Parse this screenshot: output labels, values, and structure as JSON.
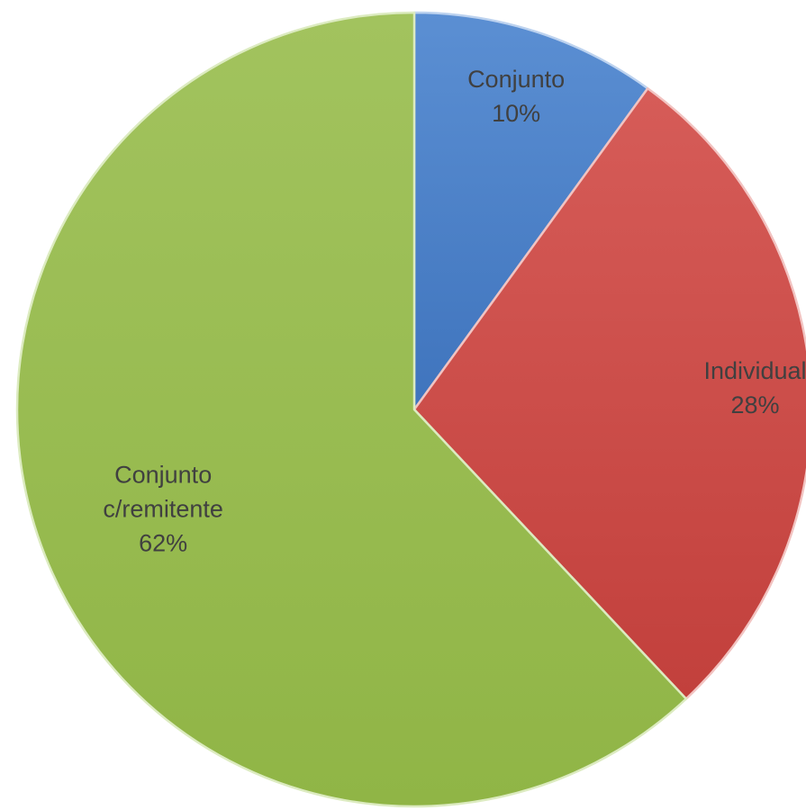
{
  "chart_data": {
    "type": "pie",
    "title": "",
    "start_angle_deg": 0,
    "direction": "clockwise",
    "legend": "none",
    "slices": [
      {
        "key": "conjunto",
        "label_lines": [
          "Conjunto"
        ],
        "percent_label": "10%",
        "value": 10,
        "color": "#5b8fd3",
        "color_dark": "#3f74bd",
        "stroke": "#bcd2ef"
      },
      {
        "key": "individual",
        "label_lines": [
          "Individual"
        ],
        "percent_label": "28%",
        "value": 28,
        "color": "#d65c58",
        "color_dark": "#c2403c",
        "stroke": "#f2c3c1"
      },
      {
        "key": "conjunto-c-remitente",
        "label_lines": [
          "Conjunto",
          "c/remitente"
        ],
        "percent_label": "62%",
        "value": 62,
        "color": "#a2c35e",
        "color_dark": "#90b546",
        "stroke": "#dcebc0"
      }
    ]
  }
}
